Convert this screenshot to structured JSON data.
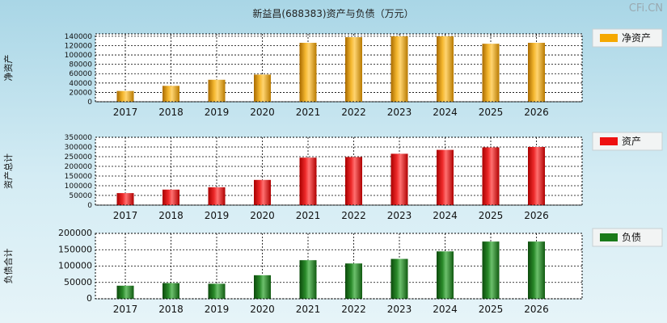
{
  "title": "新益昌(688383)资产与负债（万元）",
  "watermark": "CFi.CN",
  "chart_data": [
    {
      "type": "bar",
      "ylabel": "净资产",
      "legend": "净资产",
      "legend_position": "top-right",
      "color": "#f5a800",
      "categories": [
        "2017",
        "2018",
        "2019",
        "2020",
        "2021",
        "2022",
        "2023",
        "2024",
        "2025",
        "2026"
      ],
      "values": [
        23000,
        34000,
        47000,
        58000,
        126000,
        138000,
        140000,
        140000,
        124000,
        126000
      ],
      "yticks": [
        0,
        20000,
        40000,
        60000,
        80000,
        100000,
        120000,
        140000
      ],
      "ylim": [
        0,
        145000
      ],
      "grid": true
    },
    {
      "type": "bar",
      "ylabel": "资产总计",
      "legend": "资产",
      "legend_position": "top-right",
      "color": "#ee1111",
      "categories": [
        "2017",
        "2018",
        "2019",
        "2020",
        "2021",
        "2022",
        "2023",
        "2024",
        "2025",
        "2026"
      ],
      "values": [
        62000,
        80000,
        92000,
        130000,
        245000,
        248000,
        265000,
        285000,
        298000,
        300000
      ],
      "yticks": [
        0,
        50000,
        100000,
        150000,
        200000,
        250000,
        300000,
        350000
      ],
      "ylim": [
        0,
        350000
      ],
      "grid": true
    },
    {
      "type": "bar",
      "ylabel": "负债合计",
      "legend": "负债",
      "legend_position": "top-right",
      "color": "#1a7a1a",
      "categories": [
        "2017",
        "2018",
        "2019",
        "2020",
        "2021",
        "2022",
        "2023",
        "2024",
        "2025",
        "2026"
      ],
      "values": [
        40000,
        48000,
        46000,
        72000,
        118000,
        108000,
        122000,
        145000,
        175000,
        175000
      ],
      "yticks": [
        0,
        50000,
        100000,
        150000,
        200000
      ],
      "ylim": [
        0,
        200000
      ],
      "grid": true
    }
  ]
}
